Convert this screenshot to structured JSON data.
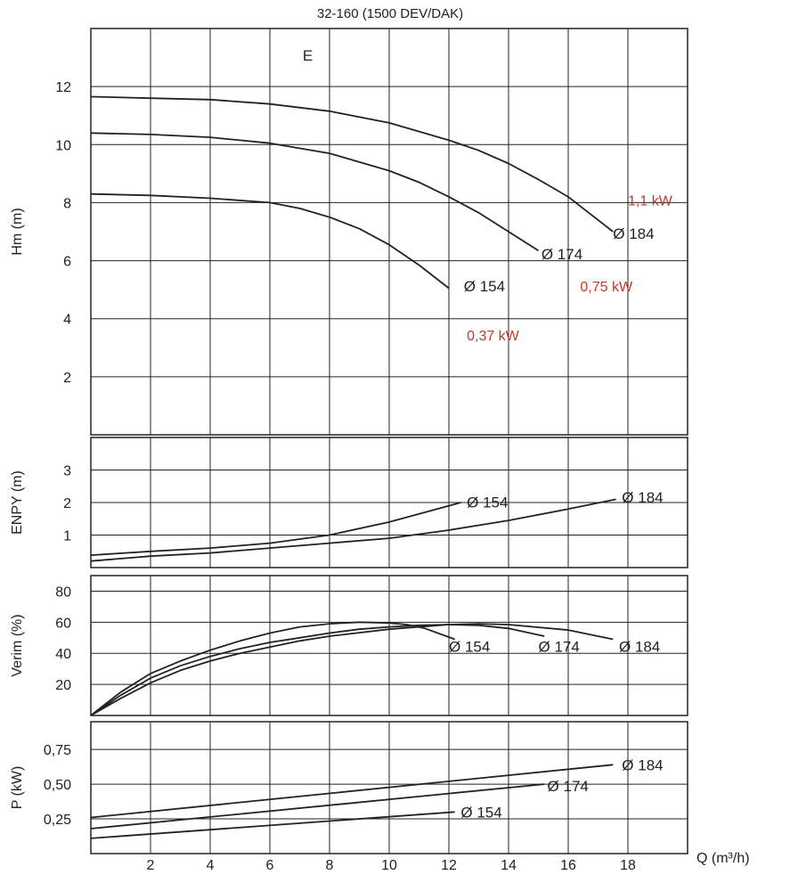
{
  "chart_data": {
    "type": "line",
    "title": "32-160 (1500 DEV/DAK)",
    "xlabel": "Q (m³/h)",
    "x_ticks": [
      "2",
      "4",
      "6",
      "8",
      "10",
      "12",
      "14",
      "16",
      "18"
    ],
    "xlim": [
      0,
      20
    ],
    "grid": true,
    "panels": [
      {
        "ylabel": "Hm (m)",
        "ylim": [
          0,
          14
        ],
        "y_ticks": [
          "2",
          "4",
          "6",
          "8",
          "10",
          "12"
        ],
        "y_tick_values": [
          2,
          4,
          6,
          8,
          10,
          12
        ],
        "series": [
          {
            "name": "Ø154",
            "x": [
              0,
              2,
              4,
              6,
              7,
              8,
              9,
              10,
              11,
              12
            ],
            "y": [
              8.3,
              8.25,
              8.15,
              8.0,
              7.8,
              7.5,
              7.1,
              6.55,
              5.85,
              5.05
            ]
          },
          {
            "name": "Ø174",
            "x": [
              0,
              2,
              4,
              6,
              8,
              10,
              11,
              12,
              13,
              14,
              15
            ],
            "y": [
              10.4,
              10.35,
              10.25,
              10.05,
              9.7,
              9.1,
              8.7,
              8.2,
              7.65,
              7.0,
              6.35
            ]
          },
          {
            "name": "Ø184",
            "x": [
              0,
              2,
              4,
              6,
              8,
              10,
              12,
              13,
              14,
              15,
              16,
              17.5
            ],
            "y": [
              11.65,
              11.6,
              11.55,
              11.4,
              11.15,
              10.75,
              10.15,
              9.8,
              9.35,
              8.8,
              8.2,
              7.0
            ]
          }
        ],
        "labels": [
          {
            "text": "E",
            "x": 7.1,
            "y": 12.9
          },
          {
            "text": "Ø 154",
            "x": 12.5,
            "y": 4.95
          },
          {
            "text": "Ø 174",
            "x": 15.1,
            "y": 6.05
          },
          {
            "text": "Ø 184",
            "x": 17.5,
            "y": 6.75
          }
        ],
        "annotations": [
          {
            "text": "1,1 kW",
            "x": 18.0,
            "y": 7.9,
            "color": "#c0392b"
          },
          {
            "text": "0,75 kW",
            "x": 16.4,
            "y": 4.95,
            "color": "#c0392b"
          },
          {
            "text": "0,37 kW",
            "x": 12.6,
            "y": 3.25,
            "color": "#c0392b"
          }
        ]
      },
      {
        "ylabel": "ENPY (m)",
        "ylim": [
          0,
          4
        ],
        "y_ticks": [
          "1",
          "2",
          "3"
        ],
        "y_tick_values": [
          1,
          2,
          3
        ],
        "series": [
          {
            "name": "Ø154",
            "x": [
              0,
              2,
              4,
              6,
              8,
              10,
              12.4
            ],
            "y": [
              0.38,
              0.5,
              0.6,
              0.75,
              1.0,
              1.4,
              2.0
            ]
          },
          {
            "name": "Ø184",
            "x": [
              0,
              2,
              4,
              6,
              8,
              10,
              12,
              14,
              16,
              17.6
            ],
            "y": [
              0.2,
              0.35,
              0.45,
              0.6,
              0.75,
              0.9,
              1.15,
              1.45,
              1.8,
              2.1
            ]
          }
        ],
        "labels": [
          {
            "text": "Ø 154",
            "x": 12.6,
            "y": 1.85
          },
          {
            "text": "Ø 184",
            "x": 17.8,
            "y": 2.0
          }
        ]
      },
      {
        "ylabel": "Verim (%)",
        "ylim": [
          0,
          90
        ],
        "y_ticks": [
          "20",
          "40",
          "60",
          "80"
        ],
        "y_tick_values": [
          20,
          40,
          60,
          80
        ],
        "series": [
          {
            "name": "Ø154",
            "x": [
              0,
              1,
              2,
              3,
              4,
              5,
              6,
              7,
              8,
              9,
              10,
              10.6,
              11.2,
              12.2
            ],
            "y": [
              0,
              15,
              27,
              35,
              42,
              48,
              53,
              57,
              59,
              60,
              59.5,
              58.5,
              56,
              49
            ]
          },
          {
            "name": "Ø174",
            "x": [
              0,
              1,
              2,
              3,
              4,
              5,
              6,
              7,
              8,
              9,
              10,
              11,
              12,
              13,
              14,
              15.2
            ],
            "y": [
              0,
              13,
              24,
              32,
              38,
              43,
              47,
              50,
              53,
              55.5,
              57,
              58,
              58.5,
              58,
              56,
              51
            ]
          },
          {
            "name": "Ø184",
            "x": [
              0,
              1,
              2,
              3,
              4,
              5,
              6,
              7,
              8,
              10,
              12,
              13,
              14,
              16,
              17.5
            ],
            "y": [
              0,
              11,
              21,
              29,
              35,
              40,
              44,
              48,
              51,
              55.5,
              58.5,
              59,
              58.5,
              55,
              49
            ]
          }
        ],
        "labels": [
          {
            "text": "Ø 154",
            "x": 12.0,
            "y": 41
          },
          {
            "text": "Ø 174",
            "x": 15.0,
            "y": 41
          },
          {
            "text": "Ø 184",
            "x": 17.7,
            "y": 41
          }
        ]
      },
      {
        "ylabel": "P (kW)",
        "ylim": [
          0,
          0.95
        ],
        "y_ticks": [
          "0,25",
          "0,50",
          "0,75"
        ],
        "y_tick_values": [
          0.25,
          0.5,
          0.75
        ],
        "series": [
          {
            "name": "Ø154",
            "x": [
              0,
              12.2
            ],
            "y": [
              0.11,
              0.3
            ]
          },
          {
            "name": "Ø174",
            "x": [
              0,
              15.2
            ],
            "y": [
              0.18,
              0.5
            ]
          },
          {
            "name": "Ø184",
            "x": [
              0,
              17.5
            ],
            "y": [
              0.26,
              0.64
            ]
          }
        ],
        "labels": [
          {
            "text": "Ø 154",
            "x": 12.4,
            "y": 0.26
          },
          {
            "text": "Ø 174",
            "x": 15.3,
            "y": 0.45
          },
          {
            "text": "Ø 184",
            "x": 17.8,
            "y": 0.6
          }
        ]
      }
    ]
  }
}
